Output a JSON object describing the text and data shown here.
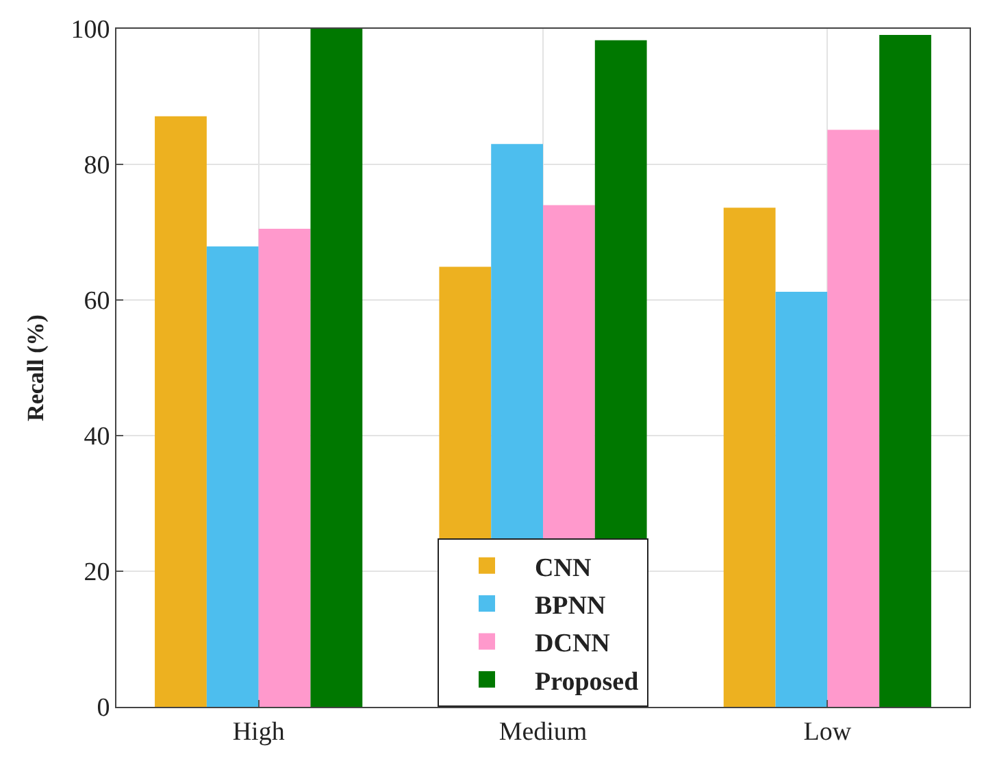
{
  "chart_data": {
    "type": "bar",
    "ylabel": "Recall (%)",
    "categories": [
      "High",
      "Medium",
      "Low"
    ],
    "series": [
      {
        "name": "CNN",
        "color": "#edb120",
        "values": [
          87.1,
          64.9,
          73.6
        ]
      },
      {
        "name": "BPNN",
        "color": "#4dbeee",
        "values": [
          67.9,
          83,
          61.2
        ]
      },
      {
        "name": "DCNN",
        "color": "#ff99cc",
        "values": [
          70.5,
          74,
          85.1
        ]
      },
      {
        "name": "Proposed",
        "color": "#007800",
        "values": [
          100,
          98.3,
          99.1
        ]
      }
    ],
    "ylim": [
      0,
      100
    ],
    "yticks": [
      0,
      20,
      40,
      60,
      80,
      100
    ],
    "grid": true,
    "legend": "bottom"
  }
}
